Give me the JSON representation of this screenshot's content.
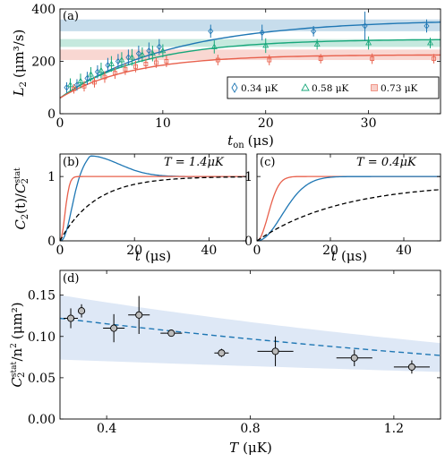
{
  "chart_data": [
    {
      "panel": "(a)",
      "type": "scatter",
      "xlabel_main": "t",
      "xlabel_sub": "on",
      "xlabel_unit": "(μs)",
      "ylabel_main": "L",
      "ylabel_sub": "2",
      "ylabel_unit": "(μm³/s)",
      "xlim": [
        0,
        37
      ],
      "ylim": [
        0,
        400
      ],
      "xticks": [
        0,
        10,
        20,
        30
      ],
      "yticks": [
        0,
        200,
        400
      ],
      "series": [
        {
          "name": "0.34 μK",
          "color": "#1f77b4",
          "marker": "diamond",
          "x": [
            1,
            2,
            3,
            4,
            5,
            6,
            7,
            8,
            9,
            10,
            15,
            20,
            25,
            30,
            36
          ],
          "y": [
            100,
            110,
            135,
            160,
            185,
            200,
            215,
            230,
            240,
            255,
            315,
            310,
            315,
            335,
            335
          ],
          "yerr": [
            20,
            22,
            25,
            25,
            28,
            28,
            30,
            30,
            32,
            30,
            25,
            30,
            20,
            55,
            25
          ],
          "fit_ymax": 360,
          "fit_tau": 11,
          "band": [
            315,
            360
          ]
        },
        {
          "name": "0.58 μK",
          "color": "#17a77a",
          "marker": "triangle",
          "x": [
            1,
            2,
            3,
            4,
            5,
            6,
            7,
            8,
            9,
            10,
            15,
            20,
            25,
            30,
            36
          ],
          "y": [
            110,
            125,
            150,
            165,
            190,
            205,
            215,
            225,
            230,
            240,
            255,
            260,
            265,
            270,
            270
          ],
          "yerr": [
            25,
            28,
            28,
            30,
            30,
            30,
            32,
            28,
            30,
            25,
            25,
            28,
            20,
            25,
            20
          ],
          "fit_ymax": 285,
          "fit_tau": 8,
          "band": [
            255,
            285
          ]
        },
        {
          "name": "0.73 μK",
          "color": "#e8604c",
          "marker": "square",
          "x": [
            1,
            2,
            3,
            4,
            5,
            6,
            7,
            8,
            9,
            10,
            15,
            20,
            25,
            30,
            36
          ],
          "y": [
            95,
            105,
            120,
            140,
            155,
            170,
            180,
            190,
            195,
            200,
            205,
            205,
            210,
            210,
            210
          ],
          "yerr": [
            18,
            20,
            20,
            22,
            22,
            22,
            22,
            20,
            20,
            22,
            20,
            20,
            18,
            20,
            18
          ],
          "fit_ymax": 225,
          "fit_tau": 7,
          "band": [
            205,
            245
          ]
        }
      ]
    },
    {
      "panel": "(b)",
      "type": "line",
      "annotation": "T = 1.4μK",
      "xlabel_main": "t",
      "xlabel_unit": "(μs)",
      "ylabel_main": "C",
      "ylabel_sub": "2",
      "ylabel_arg": "(t)/",
      "ylabel_main2": "C",
      "ylabel_sub2": "2",
      "ylabel_sup2": "stat",
      "xlim": [
        0,
        50
      ],
      "ylim": [
        0,
        1.35
      ],
      "xticks": [
        0,
        20,
        40
      ],
      "yticks": [
        0,
        1
      ],
      "series": [
        {
          "color": "#1f77b4",
          "style": "solid",
          "kind": "overshoot",
          "tau": 3.5,
          "peak": 1.32,
          "tpeak": 8,
          "tdecay": 11
        },
        {
          "color": "#e8604c",
          "style": "solid",
          "kind": "rise",
          "tau": 1.8,
          "p": 2
        },
        {
          "color": "#000000",
          "style": "dashed",
          "kind": "rise",
          "tau": 9.5,
          "p": 1
        }
      ]
    },
    {
      "panel": "(c)",
      "type": "line",
      "annotation": "T = 0.4μK",
      "xlabel_main": "t",
      "xlabel_unit": "(μs)",
      "xlim": [
        0,
        50
      ],
      "ylim": [
        0,
        1.35
      ],
      "xticks": [
        0,
        20,
        40
      ],
      "yticks": [
        0,
        1
      ],
      "series": [
        {
          "color": "#e8604c",
          "style": "solid",
          "kind": "rise",
          "tau": 4.2,
          "p": 2
        },
        {
          "color": "#1f77b4",
          "style": "solid",
          "kind": "rise",
          "tau": 9.5,
          "p": 2
        },
        {
          "color": "#000000",
          "style": "dashed",
          "kind": "rise",
          "tau": 23,
          "p": 1,
          "scale": 0.9
        }
      ]
    },
    {
      "panel": "(d)",
      "type": "scatter",
      "xlabel_main": "T",
      "xlabel_unit": "(μK)",
      "ylabel_main": "C",
      "ylabel_sub": "2",
      "ylabel_sup": "stat",
      "ylabel_rest": "/n",
      "ylabel_sup2": "2",
      "ylabel_unit": "(μm²)",
      "xlim": [
        0.27,
        1.33
      ],
      "ylim": [
        0,
        0.18
      ],
      "xticks": [
        0.4,
        0.8,
        1.2
      ],
      "xtick_labels": [
        "0.4",
        "0.8",
        "1.2"
      ],
      "yticks": [
        0,
        0.05,
        0.1,
        0.15
      ],
      "ytick_labels": [
        "0.00",
        "0.05",
        "0.10",
        "0.15"
      ],
      "points": {
        "x": [
          0.3,
          0.33,
          0.42,
          0.49,
          0.58,
          0.72,
          0.87,
          1.09,
          1.25
        ],
        "y": [
          0.122,
          0.131,
          0.11,
          0.126,
          0.104,
          0.08,
          0.082,
          0.074,
          0.063
        ],
        "xerr": [
          0.02,
          0.01,
          0.03,
          0.03,
          0.03,
          0.02,
          0.05,
          0.05,
          0.05
        ],
        "yerr": [
          0.012,
          0.008,
          0.017,
          0.023,
          0.003,
          0.005,
          0.018,
          0.01,
          0.008
        ]
      },
      "fit": {
        "x": [
          0.27,
          1.33
        ],
        "y": [
          0.122,
          0.077
        ],
        "color": "#1f77b4",
        "style": "dashed"
      },
      "band": {
        "upper": [
          0.15,
          0.092
        ],
        "lower": [
          0.072,
          0.057
        ],
        "color": "#c8d8f0"
      },
      "marker_fill": "#bbbbbb"
    }
  ]
}
